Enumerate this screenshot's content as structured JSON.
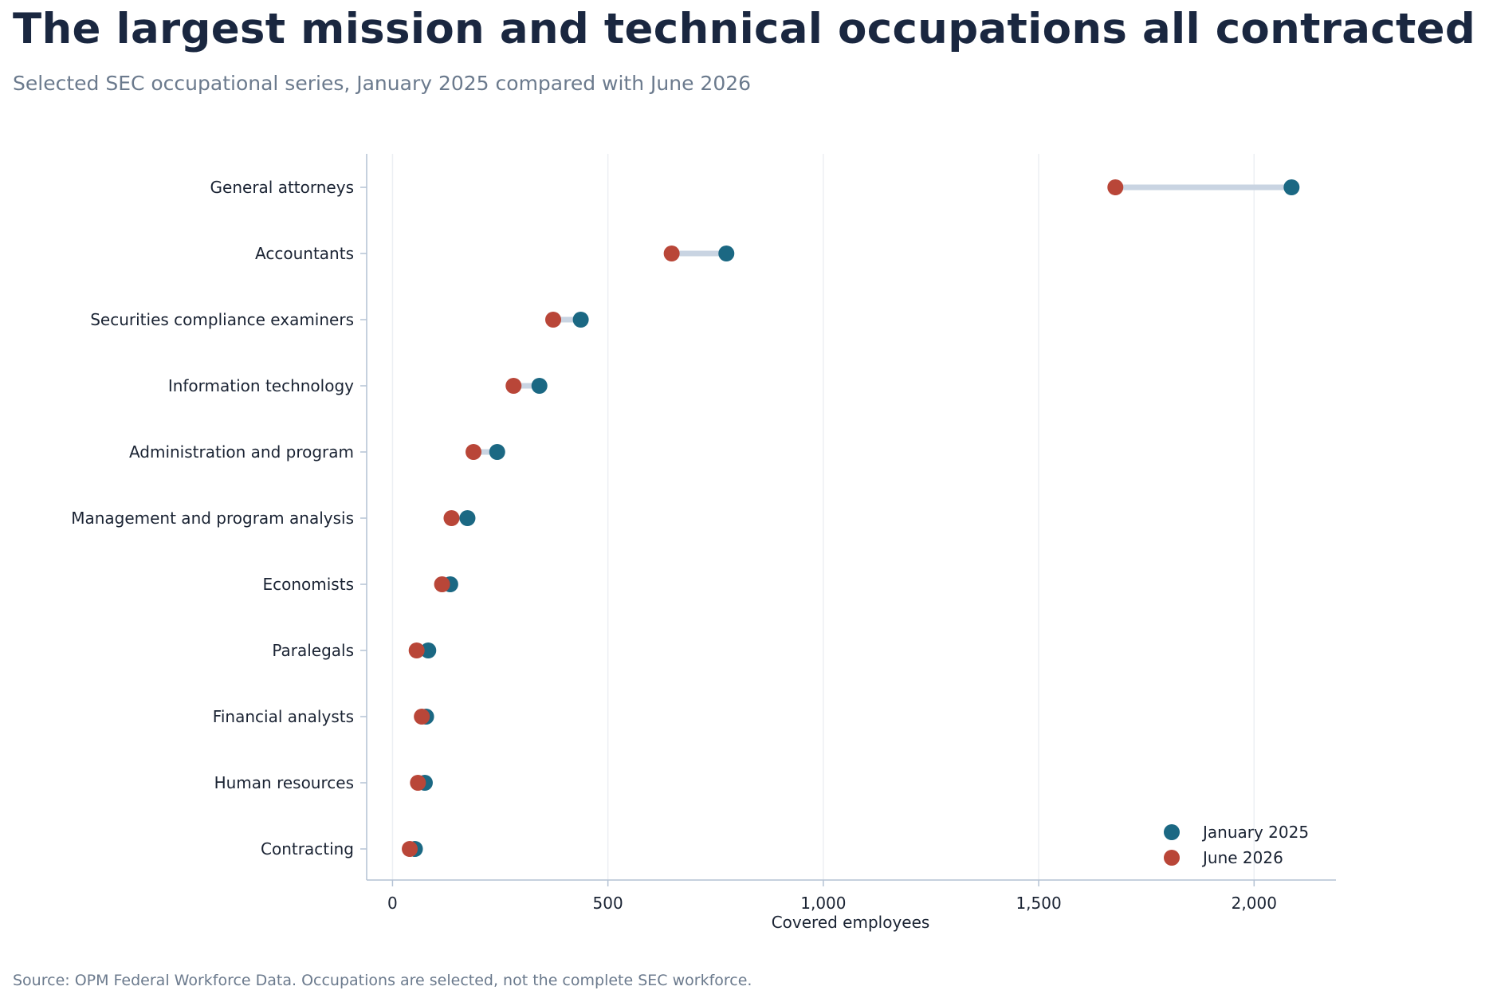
{
  "header": {
    "title": "The largest mission and technical occupations all contracted",
    "subtitle": "Selected SEC occupational series, January 2025 compared with June 2026"
  },
  "footer": {
    "source": "Source: OPM Federal Workforce Data. Occupations are selected, not the complete SEC workforce."
  },
  "colors": {
    "jan2025": "#1b6883",
    "jun2026": "#b94638",
    "connector": "#c9d4e2",
    "axis": "#b4c2d4",
    "grid": "#eceff3"
  },
  "chart_data": {
    "type": "scatter",
    "subtype": "dumbbell",
    "xlabel": "Covered employees",
    "xlim": [
      -60,
      2190
    ],
    "xticks": [
      0,
      500,
      1000,
      1500,
      2000
    ],
    "xtick_labels": [
      "0",
      "500",
      "1,000",
      "1,500",
      "2,000"
    ],
    "grid": "vertical",
    "legend_position": "bottom-right",
    "categories": [
      "General attorneys",
      "Accountants",
      "Securities compliance examiners",
      "Information technology",
      "Administration and program",
      "Management and program analysis",
      "Economists",
      "Paralegals",
      "Financial analysts",
      "Human resources",
      "Contracting"
    ],
    "series": [
      {
        "name": "January 2025",
        "values": [
          2087,
          775,
          437,
          341,
          243,
          174,
          134,
          83,
          78,
          75,
          52
        ]
      },
      {
        "name": "June 2026",
        "values": [
          1678,
          648,
          373,
          281,
          188,
          137,
          115,
          56,
          68,
          59,
          40
        ]
      }
    ]
  }
}
